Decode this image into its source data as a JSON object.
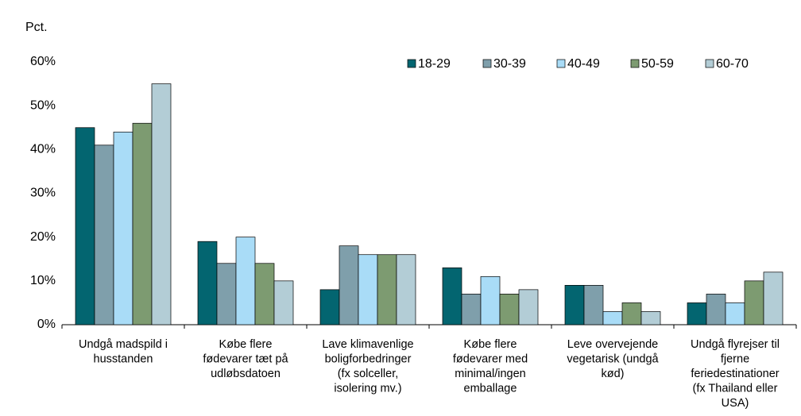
{
  "chart_data": {
    "type": "bar",
    "ylabel": "Pct.",
    "categories": [
      [
        "Undgå madspild i",
        "husstanden"
      ],
      [
        "Købe flere",
        "fødevarer tæt på",
        "udløbsdatoen"
      ],
      [
        "Lave klimavenlige",
        "boligforbedringer",
        "(fx solceller,",
        "isolering mv.)"
      ],
      [
        "Købe flere",
        "fødevarer med",
        "minimal/ingen",
        "emballage"
      ],
      [
        "Leve overvejende",
        "vegetarisk (undgå",
        "kød)"
      ],
      [
        "Undgå flyrejser til",
        "fjerne",
        "feriedestinationer",
        "(fx Thailand eller",
        "USA)"
      ]
    ],
    "series": [
      {
        "name": "18-29",
        "color": "#036570",
        "values": [
          45,
          19,
          8,
          13,
          9,
          5
        ]
      },
      {
        "name": "30-39",
        "color": "#7f9fab",
        "values": [
          41,
          14,
          18,
          7,
          9,
          7
        ]
      },
      {
        "name": "40-49",
        "color": "#a9dcf7",
        "values": [
          44,
          20,
          16,
          11,
          3,
          5
        ]
      },
      {
        "name": "50-59",
        "color": "#7d9b71",
        "values": [
          46,
          14,
          16,
          7,
          5,
          10
        ]
      },
      {
        "name": "60-70",
        "color": "#b3cdd6",
        "values": [
          55,
          10,
          16,
          8,
          3,
          12
        ]
      }
    ],
    "ylim": [
      0,
      60
    ],
    "yticks": [
      {
        "value": 0,
        "label": "0%"
      },
      {
        "value": 10,
        "label": "10%"
      },
      {
        "value": 20,
        "label": "20%"
      },
      {
        "value": 30,
        "label": "30%"
      },
      {
        "value": 40,
        "label": "40%"
      },
      {
        "value": 50,
        "label": "50%"
      },
      {
        "value": 60,
        "label": "60%"
      }
    ],
    "grid": false,
    "legend": "top-right"
  }
}
